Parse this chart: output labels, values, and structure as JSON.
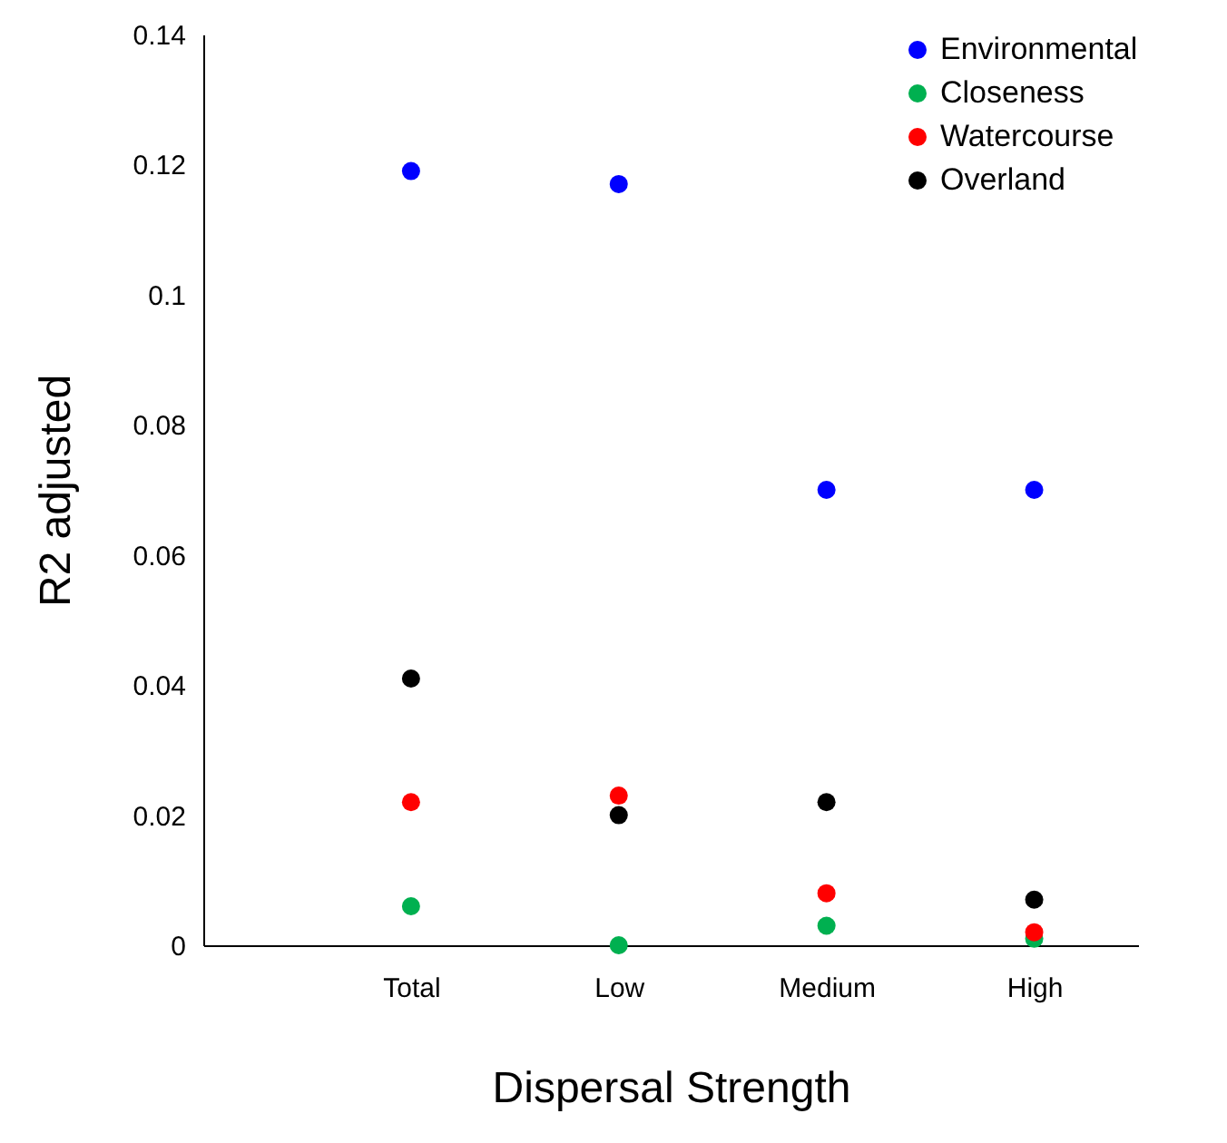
{
  "chart_data": {
    "type": "scatter",
    "xlabel": "Dispersal Strength",
    "ylabel": "R2 adjusted",
    "categories": [
      "Total",
      "Low",
      "Medium",
      "High"
    ],
    "series": [
      {
        "name": "Environmental",
        "color": "#0000ff",
        "values": [
          0.119,
          0.117,
          0.07,
          0.07
        ]
      },
      {
        "name": "Closeness",
        "color": "#00b050",
        "values": [
          0.006,
          0.0,
          0.003,
          0.001
        ]
      },
      {
        "name": "Watercourse",
        "color": "#ff0000",
        "values": [
          0.022,
          0.023,
          0.008,
          0.002
        ]
      },
      {
        "name": "Overland",
        "color": "#000000",
        "values": [
          0.041,
          0.02,
          0.022,
          0.007
        ]
      }
    ],
    "ylim": [
      0,
      0.14
    ],
    "yticks": [
      0,
      0.02,
      0.04,
      0.06,
      0.08,
      0.1,
      0.12,
      0.14
    ],
    "grid": false,
    "legend": "top right",
    "marker": "circle"
  }
}
